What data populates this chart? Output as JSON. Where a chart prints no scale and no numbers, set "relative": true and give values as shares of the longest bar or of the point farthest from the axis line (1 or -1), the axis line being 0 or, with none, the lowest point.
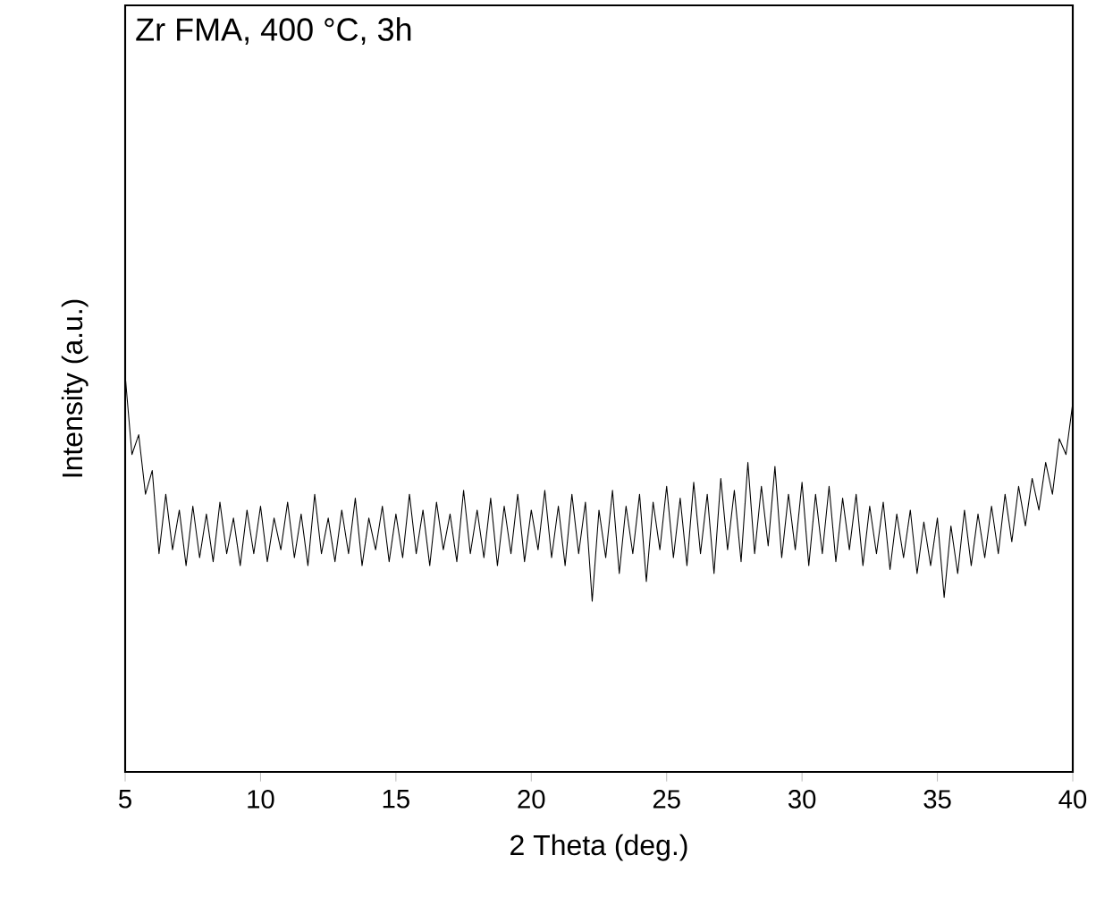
{
  "chart_data": {
    "type": "line",
    "title": "Zr FMA, 400 °C, 3h",
    "xlabel": "2 Theta (deg.)",
    "ylabel": "Intensity (a.u.)",
    "relative": true,
    "xlim": [
      5,
      40
    ],
    "xticks": [
      5,
      10,
      15,
      20,
      25,
      30,
      35,
      40
    ],
    "x": [
      5,
      5.25,
      5.5,
      5.75,
      6,
      6.25,
      6.5,
      6.75,
      7,
      7.25,
      7.5,
      7.75,
      8,
      8.25,
      8.5,
      8.75,
      9,
      9.25,
      9.5,
      9.75,
      10,
      10.25,
      10.5,
      10.75,
      11,
      11.25,
      11.5,
      11.75,
      12,
      12.25,
      12.5,
      12.75,
      13,
      13.25,
      13.5,
      13.75,
      14,
      14.25,
      14.5,
      14.75,
      15,
      15.25,
      15.5,
      15.75,
      16,
      16.25,
      16.5,
      16.75,
      17,
      17.25,
      17.5,
      17.75,
      18,
      18.25,
      18.5,
      18.75,
      19,
      19.25,
      19.5,
      19.75,
      20,
      20.25,
      20.5,
      20.75,
      21,
      21.25,
      21.5,
      21.75,
      22,
      22.25,
      22.5,
      22.75,
      23,
      23.25,
      23.5,
      23.75,
      24,
      24.25,
      24.5,
      24.75,
      25,
      25.25,
      25.5,
      25.75,
      26,
      26.25,
      26.5,
      26.75,
      27,
      27.25,
      27.5,
      27.75,
      28,
      28.25,
      28.5,
      28.75,
      29,
      29.25,
      29.5,
      29.75,
      30,
      30.25,
      30.5,
      30.75,
      31,
      31.25,
      31.5,
      31.75,
      32,
      32.25,
      32.5,
      32.75,
      33,
      33.25,
      33.5,
      33.75,
      34,
      34.25,
      34.5,
      34.75,
      35,
      35.25,
      35.5,
      35.75,
      36,
      36.25,
      36.5,
      36.75,
      37,
      37.25,
      37.5,
      37.75,
      38,
      38.25,
      38.5,
      38.75,
      39,
      39.25,
      39.5,
      39.75,
      40
    ],
    "series": [
      {
        "color": "#000000",
        "values": [
          1.0,
          0.8,
          0.85,
          0.7,
          0.76,
          0.55,
          0.7,
          0.56,
          0.66,
          0.52,
          0.67,
          0.54,
          0.65,
          0.53,
          0.68,
          0.55,
          0.64,
          0.52,
          0.66,
          0.55,
          0.67,
          0.53,
          0.64,
          0.56,
          0.68,
          0.54,
          0.65,
          0.52,
          0.7,
          0.55,
          0.64,
          0.53,
          0.66,
          0.55,
          0.69,
          0.52,
          0.64,
          0.56,
          0.67,
          0.53,
          0.65,
          0.54,
          0.7,
          0.55,
          0.66,
          0.52,
          0.68,
          0.56,
          0.65,
          0.53,
          0.71,
          0.55,
          0.66,
          0.54,
          0.69,
          0.52,
          0.67,
          0.55,
          0.7,
          0.53,
          0.66,
          0.56,
          0.71,
          0.54,
          0.67,
          0.52,
          0.7,
          0.55,
          0.68,
          0.43,
          0.66,
          0.54,
          0.71,
          0.5,
          0.67,
          0.55,
          0.7,
          0.48,
          0.68,
          0.56,
          0.72,
          0.54,
          0.69,
          0.52,
          0.73,
          0.55,
          0.7,
          0.5,
          0.74,
          0.56,
          0.71,
          0.53,
          0.78,
          0.55,
          0.72,
          0.57,
          0.77,
          0.54,
          0.7,
          0.56,
          0.73,
          0.52,
          0.7,
          0.55,
          0.72,
          0.53,
          0.69,
          0.56,
          0.7,
          0.52,
          0.67,
          0.55,
          0.68,
          0.51,
          0.65,
          0.54,
          0.66,
          0.5,
          0.63,
          0.52,
          0.64,
          0.44,
          0.62,
          0.5,
          0.66,
          0.52,
          0.65,
          0.54,
          0.67,
          0.55,
          0.7,
          0.58,
          0.72,
          0.62,
          0.74,
          0.66,
          0.78,
          0.7,
          0.84,
          0.8,
          0.93
        ]
      }
    ],
    "marker": "none"
  }
}
